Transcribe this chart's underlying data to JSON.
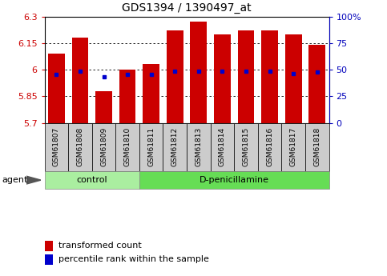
{
  "title": "GDS1394 / 1390497_at",
  "samples": [
    "GSM61807",
    "GSM61808",
    "GSM61809",
    "GSM61810",
    "GSM61811",
    "GSM61812",
    "GSM61813",
    "GSM61814",
    "GSM61815",
    "GSM61816",
    "GSM61817",
    "GSM61818"
  ],
  "red_values": [
    6.09,
    6.18,
    5.88,
    6.0,
    6.03,
    6.22,
    6.27,
    6.2,
    6.22,
    6.22,
    6.2,
    6.14
  ],
  "blue_values": [
    5.975,
    5.99,
    5.958,
    5.973,
    5.972,
    5.99,
    5.99,
    5.99,
    5.99,
    5.99,
    5.98,
    5.985
  ],
  "y_min": 5.7,
  "y_max": 6.3,
  "y_ticks": [
    5.7,
    5.85,
    6.0,
    6.15,
    6.3
  ],
  "y_tick_labels": [
    "5.7",
    "5.85",
    "6",
    "6.15",
    "6.3"
  ],
  "right_y_ticks": [
    0,
    25,
    50,
    75,
    100
  ],
  "right_y_tick_labels": [
    "0",
    "25",
    "50",
    "75",
    "100%"
  ],
  "control_count": 4,
  "dpen_count": 8,
  "bar_color": "#cc0000",
  "dot_color": "#0000cc",
  "sample_box_color": "#cccccc",
  "control_color": "#aaeea0",
  "dpen_color": "#66dd55",
  "bg_color": "#ffffff",
  "xlabel_color": "#cc0000",
  "right_axis_color": "#0000bb",
  "agent_label": "agent",
  "control_label": "control",
  "dpen_label": "D-penicillamine",
  "legend_red": "transformed count",
  "legend_blue": "percentile rank within the sample"
}
